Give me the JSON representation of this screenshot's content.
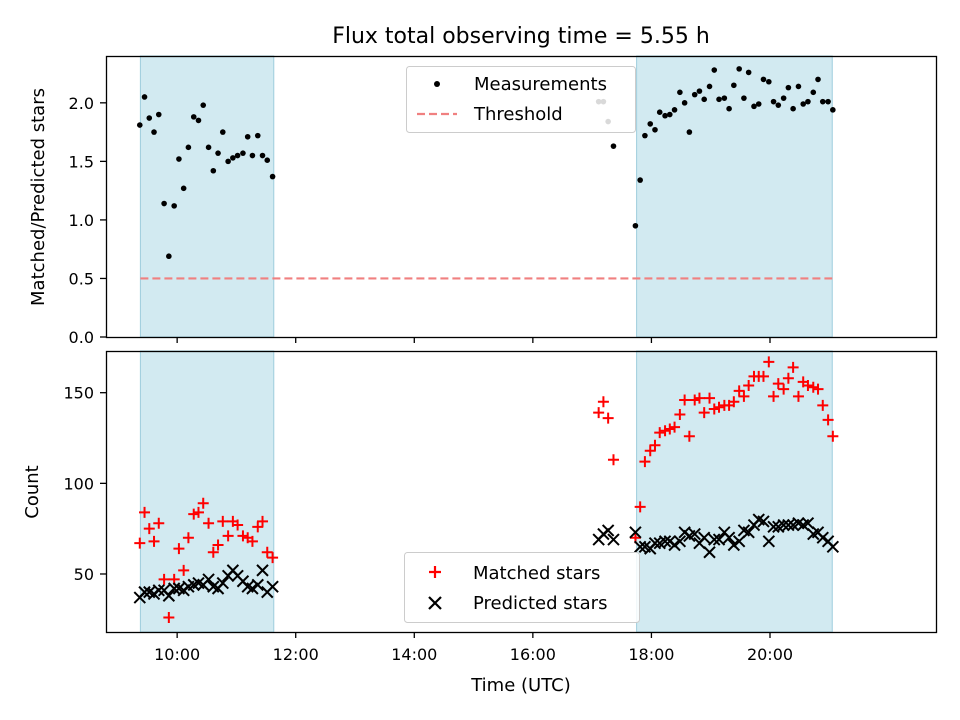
{
  "chart_data": [
    {
      "type": "scatter",
      "title": "Flux total observing time = 5.55 h",
      "xlabel": "",
      "ylabel": "Matched/Predicted stars",
      "xlim": [
        8.8,
        22.8
      ],
      "ylim": [
        0,
        2.4
      ],
      "yticks": [
        0.0,
        0.5,
        1.0,
        1.5,
        2.0
      ],
      "ytick_labels": [
        "0.0",
        "0.5",
        "1.0",
        "1.5",
        "2.0"
      ],
      "shaded_spans": [
        [
          9.38,
          11.63
        ],
        [
          17.75,
          21.05
        ]
      ],
      "legend": {
        "position": "top-center",
        "entries": [
          "Measurements",
          "Threshold"
        ]
      },
      "series": [
        {
          "name": "Measurements",
          "marker": "dot",
          "color": "#000000",
          "points": [
            [
              9.37,
              1.81
            ],
            [
              9.45,
              2.05
            ],
            [
              9.53,
              1.87
            ],
            [
              9.61,
              1.75
            ],
            [
              9.69,
              1.9
            ],
            [
              9.78,
              1.14
            ],
            [
              9.86,
              0.69
            ],
            [
              9.95,
              1.12
            ],
            [
              10.03,
              1.52
            ],
            [
              10.11,
              1.27
            ],
            [
              10.19,
              1.62
            ],
            [
              10.28,
              1.88
            ],
            [
              10.36,
              1.85
            ],
            [
              10.44,
              1.98
            ],
            [
              10.53,
              1.62
            ],
            [
              10.61,
              1.42
            ],
            [
              10.69,
              1.57
            ],
            [
              10.77,
              1.75
            ],
            [
              10.86,
              1.5
            ],
            [
              10.94,
              1.53
            ],
            [
              11.02,
              1.55
            ],
            [
              11.11,
              1.57
            ],
            [
              11.19,
              1.71
            ],
            [
              11.27,
              1.55
            ],
            [
              11.36,
              1.72
            ],
            [
              11.44,
              1.55
            ],
            [
              11.52,
              1.51
            ],
            [
              11.61,
              1.37
            ],
            [
              17.11,
              2.01
            ],
            [
              17.19,
              2.01
            ],
            [
              17.27,
              1.84
            ],
            [
              17.36,
              1.63
            ],
            [
              17.73,
              0.95
            ],
            [
              17.81,
              1.34
            ],
            [
              17.89,
              1.72
            ],
            [
              17.98,
              1.82
            ],
            [
              18.06,
              1.77
            ],
            [
              18.14,
              1.92
            ],
            [
              18.23,
              1.89
            ],
            [
              18.31,
              1.9
            ],
            [
              18.39,
              1.94
            ],
            [
              18.48,
              2.09
            ],
            [
              18.56,
              2.0
            ],
            [
              18.64,
              1.75
            ],
            [
              18.73,
              2.07
            ],
            [
              18.81,
              2.1
            ],
            [
              18.89,
              2.03
            ],
            [
              18.98,
              2.14
            ],
            [
              19.06,
              2.28
            ],
            [
              19.14,
              2.03
            ],
            [
              19.23,
              2.04
            ],
            [
              19.31,
              1.95
            ],
            [
              19.39,
              2.15
            ],
            [
              19.48,
              2.29
            ],
            [
              19.56,
              2.04
            ],
            [
              19.64,
              2.26
            ],
            [
              19.73,
              1.97
            ],
            [
              19.81,
              1.99
            ],
            [
              19.89,
              2.2
            ],
            [
              19.98,
              2.18
            ],
            [
              20.06,
              2.01
            ],
            [
              20.14,
              1.98
            ],
            [
              20.23,
              2.04
            ],
            [
              20.31,
              2.13
            ],
            [
              20.39,
              1.95
            ],
            [
              20.48,
              2.14
            ],
            [
              20.56,
              1.99
            ],
            [
              20.64,
              2.01
            ],
            [
              20.73,
              2.09
            ],
            [
              20.81,
              2.2
            ],
            [
              20.89,
              2.01
            ],
            [
              20.98,
              2.01
            ],
            [
              21.06,
              1.94
            ]
          ]
        },
        {
          "name": "Threshold",
          "marker": "dashed-line",
          "color": "#f08080",
          "x": [
            9.38,
            21.05
          ],
          "y": [
            0.5,
            0.5
          ]
        }
      ]
    },
    {
      "type": "scatter",
      "title": "",
      "xlabel": "Time (UTC)",
      "ylabel": "Count",
      "xlim": [
        8.8,
        22.8
      ],
      "ylim": [
        18,
        173
      ],
      "yticks": [
        50,
        100,
        150
      ],
      "ytick_labels": [
        "50",
        "100",
        "150"
      ],
      "xticks": [
        10,
        12,
        14,
        16,
        18,
        20
      ],
      "xtick_labels": [
        "10:00",
        "12:00",
        "14:00",
        "16:00",
        "18:00",
        "20:00"
      ],
      "shaded_spans": [
        [
          9.38,
          11.63
        ],
        [
          17.75,
          21.05
        ]
      ],
      "legend": {
        "position": "bottom-center",
        "entries": [
          "Matched stars",
          "Predicted stars"
        ]
      },
      "series": [
        {
          "name": "Matched stars",
          "marker": "plus",
          "color": "#ff0000",
          "points": [
            [
              9.37,
              67
            ],
            [
              9.45,
              84
            ],
            [
              9.53,
              75
            ],
            [
              9.61,
              68
            ],
            [
              9.69,
              78
            ],
            [
              9.78,
              47
            ],
            [
              9.86,
              26
            ],
            [
              9.95,
              47
            ],
            [
              10.03,
              64
            ],
            [
              10.11,
              52
            ],
            [
              10.19,
              70
            ],
            [
              10.28,
              83
            ],
            [
              10.36,
              84
            ],
            [
              10.44,
              89
            ],
            [
              10.53,
              78
            ],
            [
              10.61,
              62
            ],
            [
              10.69,
              66
            ],
            [
              10.77,
              79
            ],
            [
              10.86,
              71
            ],
            [
              10.94,
              79
            ],
            [
              11.02,
              77
            ],
            [
              11.11,
              71
            ],
            [
              11.19,
              70
            ],
            [
              11.27,
              68
            ],
            [
              11.36,
              76
            ],
            [
              11.44,
              79
            ],
            [
              11.52,
              62
            ],
            [
              11.61,
              59
            ],
            [
              17.11,
              139
            ],
            [
              17.19,
              145
            ],
            [
              17.27,
              136
            ],
            [
              17.36,
              113
            ],
            [
              17.73,
              70
            ],
            [
              17.81,
              87
            ],
            [
              17.89,
              112
            ],
            [
              17.98,
              118
            ],
            [
              18.06,
              121
            ],
            [
              18.14,
              128
            ],
            [
              18.23,
              129
            ],
            [
              18.31,
              130
            ],
            [
              18.39,
              131
            ],
            [
              18.48,
              138
            ],
            [
              18.56,
              146
            ],
            [
              18.64,
              126
            ],
            [
              18.73,
              146
            ],
            [
              18.81,
              147
            ],
            [
              18.89,
              139
            ],
            [
              18.98,
              147
            ],
            [
              19.06,
              141
            ],
            [
              19.14,
              142
            ],
            [
              19.23,
              143
            ],
            [
              19.31,
              143
            ],
            [
              19.39,
              145
            ],
            [
              19.48,
              151
            ],
            [
              19.56,
              148
            ],
            [
              19.64,
              154
            ],
            [
              19.73,
              159
            ],
            [
              19.81,
              159
            ],
            [
              19.89,
              159
            ],
            [
              19.98,
              167
            ],
            [
              20.06,
              148
            ],
            [
              20.14,
              155
            ],
            [
              20.23,
              152
            ],
            [
              20.31,
              158
            ],
            [
              20.39,
              164
            ],
            [
              20.48,
              148
            ],
            [
              20.56,
              156
            ],
            [
              20.64,
              154
            ],
            [
              20.73,
              153
            ],
            [
              20.81,
              152
            ],
            [
              20.89,
              143
            ],
            [
              20.98,
              135
            ],
            [
              21.06,
              126
            ]
          ]
        },
        {
          "name": "Predicted stars",
          "marker": "x",
          "color": "#000000",
          "points": [
            [
              9.37,
              37
            ],
            [
              9.45,
              40
            ],
            [
              9.53,
              40
            ],
            [
              9.61,
              39
            ],
            [
              9.69,
              41
            ],
            [
              9.78,
              41
            ],
            [
              9.86,
              38
            ],
            [
              9.95,
              42
            ],
            [
              10.03,
              42
            ],
            [
              10.11,
              41
            ],
            [
              10.19,
              43
            ],
            [
              10.28,
              44
            ],
            [
              10.36,
              45
            ],
            [
              10.44,
              44
            ],
            [
              10.53,
              47
            ],
            [
              10.61,
              43
            ],
            [
              10.69,
              42
            ],
            [
              10.77,
              45
            ],
            [
              10.86,
              49
            ],
            [
              10.94,
              52
            ],
            [
              11.02,
              49
            ],
            [
              11.11,
              46
            ],
            [
              11.19,
              43
            ],
            [
              11.27,
              42
            ],
            [
              11.36,
              44
            ],
            [
              11.44,
              52
            ],
            [
              11.52,
              40
            ],
            [
              11.61,
              43
            ],
            [
              17.11,
              69
            ],
            [
              17.19,
              72
            ],
            [
              17.27,
              74
            ],
            [
              17.36,
              69
            ],
            [
              17.73,
              73
            ],
            [
              17.81,
              65
            ],
            [
              17.89,
              65
            ],
            [
              17.98,
              64
            ],
            [
              18.06,
              67
            ],
            [
              18.14,
              67
            ],
            [
              18.23,
              68
            ],
            [
              18.31,
              68
            ],
            [
              18.39,
              66
            ],
            [
              18.48,
              68
            ],
            [
              18.56,
              73
            ],
            [
              18.64,
              71
            ],
            [
              18.73,
              72
            ],
            [
              18.81,
              67
            ],
            [
              18.89,
              70
            ],
            [
              18.98,
              62
            ],
            [
              19.06,
              69
            ],
            [
              19.14,
              69
            ],
            [
              19.23,
              73
            ],
            [
              19.31,
              70
            ],
            [
              19.39,
              66
            ],
            [
              19.48,
              68
            ],
            [
              19.56,
              74
            ],
            [
              19.64,
              73
            ],
            [
              19.73,
              77
            ],
            [
              19.81,
              80
            ],
            [
              19.89,
              79
            ],
            [
              19.98,
              68
            ],
            [
              20.06,
              76
            ],
            [
              20.14,
              76
            ],
            [
              20.23,
              77
            ],
            [
              20.31,
              77
            ],
            [
              20.39,
              77
            ],
            [
              20.48,
              78
            ],
            [
              20.56,
              77
            ],
            [
              20.64,
              78
            ],
            [
              20.73,
              72
            ],
            [
              20.81,
              73
            ],
            [
              20.89,
              70
            ],
            [
              20.98,
              68
            ],
            [
              21.06,
              65
            ]
          ]
        }
      ]
    }
  ]
}
